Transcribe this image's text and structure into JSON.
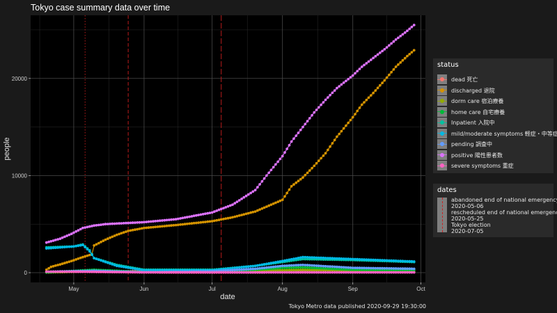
{
  "chart_data": {
    "type": "line",
    "title": "Tokyo case summary data over time",
    "xlabel": "date",
    "ylabel": "people",
    "caption": "Tokyo Metro data published 2020-09-29 19:30:00",
    "x_range": [
      "2020-04-12",
      "2020-10-03"
    ],
    "ylim": [
      -1000,
      26500
    ],
    "x_ticks": [
      {
        "date": "2020-05-01",
        "label": "May"
      },
      {
        "date": "2020-06-01",
        "label": "Jun"
      },
      {
        "date": "2020-07-01",
        "label": "Jul"
      },
      {
        "date": "2020-08-01",
        "label": "Aug"
      },
      {
        "date": "2020-09-01",
        "label": "Sep"
      },
      {
        "date": "2020-10-01",
        "label": "Oct"
      }
    ],
    "y_ticks": [
      0,
      10000,
      20000
    ],
    "grid": true,
    "legend_position": "right",
    "status_legend_title": "status",
    "dates_legend_title": "dates",
    "series": [
      {
        "name": "dead 死亡",
        "color": "#F8766D",
        "points": [
          [
            "2020-04-19",
            60
          ],
          [
            "2020-05-01",
            90
          ],
          [
            "2020-05-15",
            150
          ],
          [
            "2020-06-01",
            160
          ],
          [
            "2020-07-01",
            180
          ],
          [
            "2020-08-01",
            220
          ],
          [
            "2020-09-01",
            280
          ],
          [
            "2020-09-28",
            300
          ]
        ]
      },
      {
        "name": "discharged 退院",
        "color": "#D39200",
        "points": [
          [
            "2020-04-19",
            300
          ],
          [
            "2020-04-21",
            600
          ],
          [
            "2020-04-25",
            850
          ],
          [
            "2020-04-30",
            1200
          ],
          [
            "2020-05-05",
            1600
          ],
          [
            "2020-05-09",
            1900
          ],
          [
            "2020-05-10",
            2800
          ],
          [
            "2020-05-15",
            3400
          ],
          [
            "2020-05-20",
            3900
          ],
          [
            "2020-05-25",
            4300
          ],
          [
            "2020-06-01",
            4600
          ],
          [
            "2020-06-15",
            4900
          ],
          [
            "2020-07-01",
            5300
          ],
          [
            "2020-07-10",
            5700
          ],
          [
            "2020-07-20",
            6300
          ],
          [
            "2020-08-01",
            7500
          ],
          [
            "2020-08-05",
            8900
          ],
          [
            "2020-08-10",
            9800
          ],
          [
            "2020-08-15",
            11000
          ],
          [
            "2020-08-20",
            12300
          ],
          [
            "2020-08-25",
            14000
          ],
          [
            "2020-09-01",
            16000
          ],
          [
            "2020-09-05",
            17300
          ],
          [
            "2020-09-10",
            18500
          ],
          [
            "2020-09-15",
            19800
          ],
          [
            "2020-09-20",
            21200
          ],
          [
            "2020-09-25",
            22300
          ],
          [
            "2020-09-28",
            22900
          ]
        ]
      },
      {
        "name": "dorm care 宿泊療養",
        "color": "#93AA00",
        "points": [
          [
            "2020-04-19",
            20
          ],
          [
            "2020-05-10",
            150
          ],
          [
            "2020-06-01",
            50
          ],
          [
            "2020-07-01",
            80
          ],
          [
            "2020-07-20",
            200
          ],
          [
            "2020-08-01",
            250
          ],
          [
            "2020-08-10",
            300
          ],
          [
            "2020-09-01",
            200
          ],
          [
            "2020-09-28",
            150
          ]
        ]
      },
      {
        "name": "home care 自宅療養",
        "color": "#00BA38",
        "points": [
          [
            "2020-04-19",
            30
          ],
          [
            "2020-05-10",
            300
          ],
          [
            "2020-05-20",
            200
          ],
          [
            "2020-06-01",
            50
          ],
          [
            "2020-07-01",
            100
          ],
          [
            "2020-07-20",
            300
          ],
          [
            "2020-08-01",
            500
          ],
          [
            "2020-08-10",
            550
          ],
          [
            "2020-09-01",
            300
          ],
          [
            "2020-09-28",
            250
          ]
        ]
      },
      {
        "name": "Inpatient 入院中",
        "color": "#00C19F",
        "points": [
          [
            "2020-04-19",
            2600
          ],
          [
            "2020-05-01",
            2700
          ],
          [
            "2020-05-05",
            2900
          ],
          [
            "2020-05-08",
            2300
          ],
          [
            "2020-05-10",
            1500
          ],
          [
            "2020-05-20",
            800
          ],
          [
            "2020-06-01",
            300
          ],
          [
            "2020-07-01",
            300
          ],
          [
            "2020-07-20",
            700
          ],
          [
            "2020-08-01",
            1100
          ],
          [
            "2020-08-10",
            1400
          ],
          [
            "2020-09-01",
            1300
          ],
          [
            "2020-09-28",
            1100
          ]
        ]
      },
      {
        "name": "mild/moderate symptoms 軽症・中等症",
        "color": "#00B9E3",
        "points": [
          [
            "2020-04-19",
            2500
          ],
          [
            "2020-05-01",
            2700
          ],
          [
            "2020-05-05",
            2850
          ],
          [
            "2020-05-08",
            2200
          ],
          [
            "2020-05-10",
            1500
          ],
          [
            "2020-05-20",
            700
          ],
          [
            "2020-06-01",
            250
          ],
          [
            "2020-07-01",
            250
          ],
          [
            "2020-07-20",
            700
          ],
          [
            "2020-08-01",
            1200
          ],
          [
            "2020-08-10",
            1600
          ],
          [
            "2020-09-01",
            1400
          ],
          [
            "2020-09-28",
            1150
          ]
        ]
      },
      {
        "name": "pending 調査中",
        "color": "#619CFF",
        "points": [
          [
            "2020-04-19",
            100
          ],
          [
            "2020-05-10",
            200
          ],
          [
            "2020-06-01",
            50
          ],
          [
            "2020-07-01",
            150
          ],
          [
            "2020-07-20",
            400
          ],
          [
            "2020-08-01",
            700
          ],
          [
            "2020-08-10",
            800
          ],
          [
            "2020-09-01",
            500
          ],
          [
            "2020-09-28",
            400
          ]
        ]
      },
      {
        "name": "positive 陽性患者数",
        "color": "#DB72FB",
        "points": [
          [
            "2020-04-19",
            3100
          ],
          [
            "2020-04-25",
            3500
          ],
          [
            "2020-04-30",
            4000
          ],
          [
            "2020-05-05",
            4600
          ],
          [
            "2020-05-10",
            4850
          ],
          [
            "2020-05-15",
            5000
          ],
          [
            "2020-06-01",
            5200
          ],
          [
            "2020-06-15",
            5500
          ],
          [
            "2020-07-01",
            6200
          ],
          [
            "2020-07-10",
            7000
          ],
          [
            "2020-07-20",
            8500
          ],
          [
            "2020-07-25",
            10000
          ],
          [
            "2020-08-01",
            12000
          ],
          [
            "2020-08-05",
            13500
          ],
          [
            "2020-08-10",
            15000
          ],
          [
            "2020-08-15",
            16500
          ],
          [
            "2020-08-20",
            17800
          ],
          [
            "2020-08-25",
            19000
          ],
          [
            "2020-09-01",
            20300
          ],
          [
            "2020-09-05",
            21200
          ],
          [
            "2020-09-10",
            22100
          ],
          [
            "2020-09-15",
            23000
          ],
          [
            "2020-09-20",
            24000
          ],
          [
            "2020-09-25",
            24900
          ],
          [
            "2020-09-28",
            25500
          ]
        ]
      },
      {
        "name": "severe symptoms 重症",
        "color": "#FF61C3",
        "points": [
          [
            "2020-04-19",
            100
          ],
          [
            "2020-05-01",
            100
          ],
          [
            "2020-05-10",
            80
          ],
          [
            "2020-06-01",
            30
          ],
          [
            "2020-07-01",
            20
          ],
          [
            "2020-08-01",
            30
          ],
          [
            "2020-08-15",
            30
          ],
          [
            "2020-09-01",
            30
          ],
          [
            "2020-09-28",
            30
          ]
        ]
      }
    ],
    "event_dates": [
      {
        "label": "abandoned end of national emergency",
        "date": "2020-05-06",
        "color": "#cc1f1f",
        "linetype": "dotted"
      },
      {
        "label": "rescheduled end of national emergency",
        "date": "2020-05-25",
        "color": "#cc1f1f",
        "linetype": "dashed"
      },
      {
        "label": "Tokyo election",
        "date": "2020-07-05",
        "color": "#cc1f1f",
        "linetype": "longdash"
      }
    ]
  }
}
